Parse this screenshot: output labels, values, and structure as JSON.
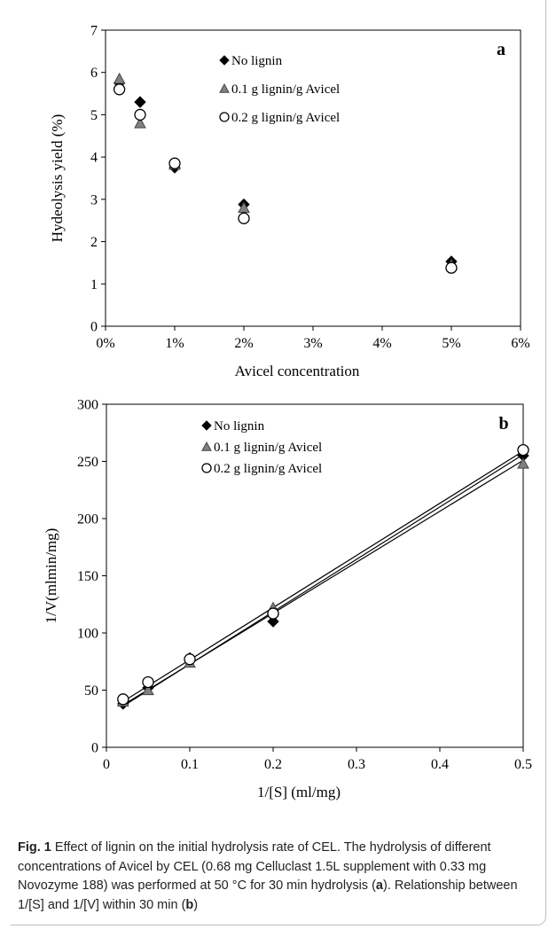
{
  "chart_data": [
    {
      "type": "scatter",
      "panel_label": "a",
      "xlabel": "Avicel concentration",
      "ylabel": "Hydeolysis yield (%)",
      "xlim": [
        0,
        6
      ],
      "ylim": [
        0,
        7
      ],
      "x_ticks": [
        "0%",
        "1%",
        "2%",
        "3%",
        "4%",
        "5%",
        "6%"
      ],
      "y_ticks": [
        "0",
        "1",
        "2",
        "3",
        "4",
        "5",
        "6",
        "7"
      ],
      "legend": "top-center",
      "series": [
        {
          "name": "No lignin",
          "marker": "diamond",
          "color": "#000000",
          "x": [
            0.2,
            0.5,
            1,
            2,
            5
          ],
          "y": [
            5.75,
            5.3,
            3.75,
            2.88,
            1.53
          ]
        },
        {
          "name": "0.1 g lignin/g Avicel",
          "marker": "triangle",
          "color": "#808080",
          "x": [
            0.2,
            0.5,
            1,
            2,
            5
          ],
          "y": [
            5.85,
            4.8,
            3.82,
            2.8,
            1.45
          ]
        },
        {
          "name": "0.2 g lignin/g Avicel",
          "marker": "circle",
          "color": "#ffffff",
          "x": [
            0.2,
            0.5,
            1,
            2,
            5
          ],
          "y": [
            5.6,
            5.0,
            3.85,
            2.55,
            1.38
          ]
        }
      ]
    },
    {
      "type": "scatter",
      "panel_label": "b",
      "xlabel": "1/[S] (ml/mg)",
      "ylabel": "1/V(mlmin/mg)",
      "xlim": [
        0,
        0.5
      ],
      "ylim": [
        0,
        300
      ],
      "x_ticks": [
        "0",
        "0.1",
        "0.2",
        "0.3",
        "0.4",
        "0.5"
      ],
      "y_ticks": [
        "0",
        "50",
        "100",
        "150",
        "200",
        "250",
        "300"
      ],
      "legend": "top-center",
      "trendlines": true,
      "series": [
        {
          "name": "No lignin",
          "marker": "diamond",
          "color": "#000000",
          "x": [
            0.02,
            0.05,
            0.1,
            0.2,
            0.5
          ],
          "y": [
            38,
            52,
            78,
            110,
            255
          ],
          "fit": [
            [
              0.02,
              36
            ],
            [
              0.5,
              256
            ]
          ]
        },
        {
          "name": "0.1 g lignin/g Avicel",
          "marker": "triangle",
          "color": "#808080",
          "x": [
            0.02,
            0.05,
            0.1,
            0.2,
            0.5
          ],
          "y": [
            40,
            50,
            74,
            122,
            248
          ],
          "fit": [
            [
              0.02,
              37
            ],
            [
              0.5,
              251
            ]
          ]
        },
        {
          "name": "0.2 g lignin/g Avicel",
          "marker": "circle",
          "color": "#ffffff",
          "x": [
            0.02,
            0.05,
            0.1,
            0.2,
            0.5
          ],
          "y": [
            42,
            57,
            77,
            117,
            260
          ],
          "fit": [
            [
              0.02,
              40
            ],
            [
              0.5,
              259
            ]
          ]
        }
      ]
    }
  ],
  "caption": {
    "label": "Fig. 1",
    "text_1": "  Effect of lignin on the initial hydrolysis rate of CEL. The hydrolysis of different concentrations of Avicel by CEL (0.68 mg Celluclast 1.5L supplement with 0.33 mg Novozyme 188) was performed at 50 °C for 30 min hydrolysis (",
    "ref_a": "a",
    "text_2": "). Relationship between 1/[S] and 1/[V] within 30 min (",
    "ref_b": "b",
    "text_3": ")"
  }
}
